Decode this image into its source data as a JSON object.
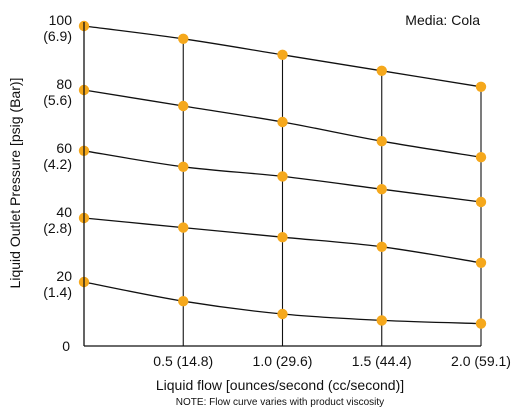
{
  "chart_data": {
    "type": "line",
    "annotation": "Media: Cola",
    "xlabel": "Liquid flow [ounces/second (cc/second)]",
    "ylabel": "Liquid Outlet Pressure [psig (Bar)]",
    "note": "NOTE: Flow curve varies with product viscosity",
    "x_ticks": [
      {
        "value": 0.5,
        "label": "0.5 (14.8)"
      },
      {
        "value": 1.0,
        "label": "1.0 (29.6)"
      },
      {
        "value": 1.5,
        "label": "1.5 (44.4)"
      },
      {
        "value": 2.0,
        "label": "2.0 (59.1)"
      }
    ],
    "y_ticks": [
      {
        "value": 100,
        "label": "100",
        "sublabel": "(6.9)"
      },
      {
        "value": 80,
        "label": "80",
        "sublabel": "(5.6)"
      },
      {
        "value": 60,
        "label": "60",
        "sublabel": "(4.2)"
      },
      {
        "value": 40,
        "label": "40",
        "sublabel": "(2.8)"
      },
      {
        "value": 20,
        "label": "20",
        "sublabel": "(1.4)"
      },
      {
        "value": 0,
        "label": "0",
        "sublabel": ""
      }
    ],
    "xlim": [
      0,
      2.0
    ],
    "ylim": [
      0,
      100
    ],
    "x": [
      0,
      0.5,
      1.0,
      1.5,
      2.0
    ],
    "series": [
      {
        "values": [
          100,
          96,
          91,
          86,
          81
        ]
      },
      {
        "values": [
          80,
          75,
          70,
          64,
          59
        ]
      },
      {
        "values": [
          61,
          56,
          53,
          49,
          45
        ]
      },
      {
        "values": [
          40,
          37,
          34,
          31,
          26
        ]
      },
      {
        "values": [
          20,
          14,
          10,
          8,
          7
        ]
      }
    ],
    "colors": {
      "marker": "#f5a81c",
      "line": "#111111",
      "axis": "#111111"
    },
    "grid": "vertical lines at x ticks"
  }
}
